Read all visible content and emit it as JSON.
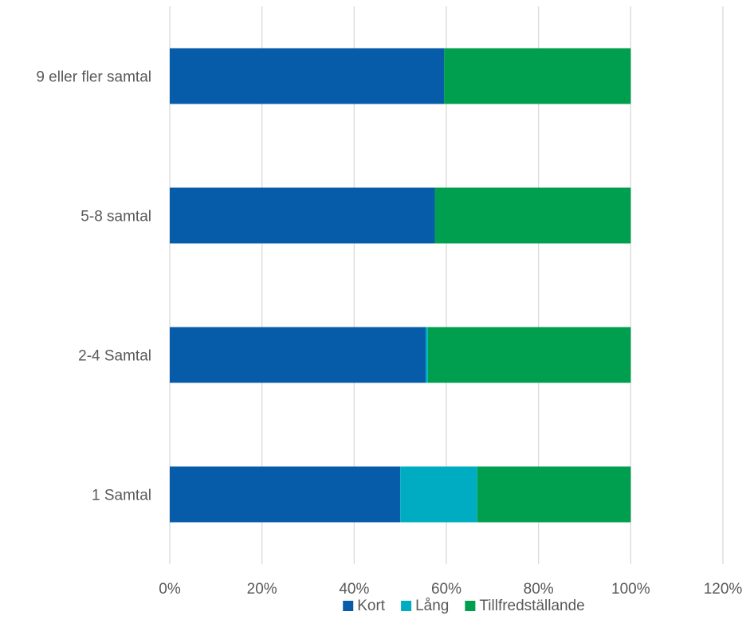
{
  "chart_data": {
    "type": "bar",
    "orientation": "horizontal",
    "stacked": true,
    "categories": [
      "1 Samtal",
      "2-4 Samtal",
      "5-8 samtal",
      "9 eller fler samtal"
    ],
    "series": [
      {
        "name": "Kort",
        "color": "#075ca9",
        "values": [
          50.0,
          55.5,
          57.5,
          59.5
        ]
      },
      {
        "name": "Lång",
        "color": "#00acc1",
        "values": [
          16.7,
          0.5,
          0.0,
          0.0
        ]
      },
      {
        "name": "Tillfredställande",
        "color": "#009e4f",
        "values": [
          33.3,
          44.0,
          42.5,
          40.5
        ]
      }
    ],
    "xlim": [
      0,
      120
    ],
    "xticks": [
      0,
      20,
      40,
      60,
      80,
      100,
      120
    ],
    "xtick_labels": [
      "0%",
      "20%",
      "40%",
      "60%",
      "80%",
      "100%",
      "120%"
    ],
    "grid": "vertical",
    "legend": "bottom-center"
  }
}
